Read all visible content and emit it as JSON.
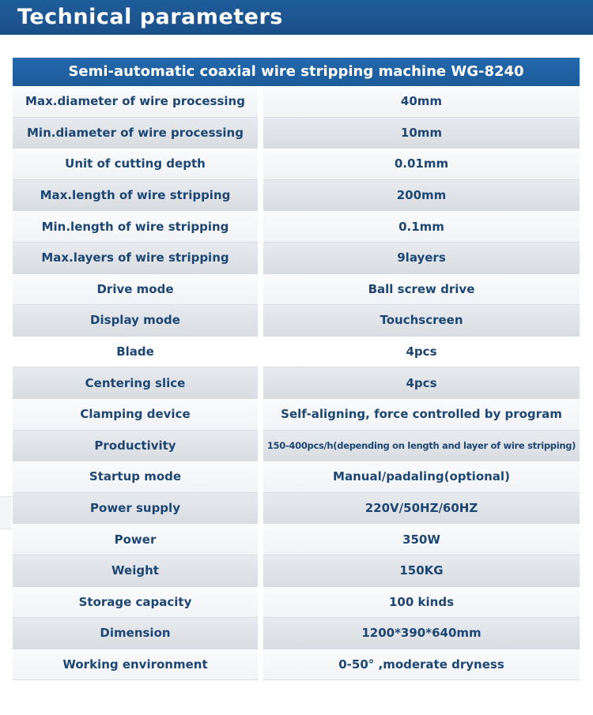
{
  "header": {
    "title": "Technical parameters"
  },
  "table": {
    "title": "Semi-automatic coaxial wire stripping machine WG-8240",
    "rows": [
      {
        "label": "Max.diameter of wire processing",
        "value": "40mm"
      },
      {
        "label": "Min.diameter of wire processing",
        "value": "10mm"
      },
      {
        "label": "Unit of cutting depth",
        "value": "0.01mm"
      },
      {
        "label": "Max.length of wire stripping",
        "value": "200mm"
      },
      {
        "label": "Min.length of wire stripping",
        "value": "0.1mm"
      },
      {
        "label": "Max.layers of wire stripping",
        "value": "9layers"
      },
      {
        "label": "Drive mode",
        "value": "Ball screw drive"
      },
      {
        "label": "Display mode",
        "value": "Touchscreen"
      },
      {
        "label": "Blade",
        "value": "4pcs"
      },
      {
        "label": "Centering slice",
        "value": "4pcs"
      },
      {
        "label": "Clamping device",
        "value": "Self-aligning, force controlled by program"
      },
      {
        "label": "Productivity",
        "value": "150-400pcs/h(depending on length and layer of wire stripping)"
      },
      {
        "label": "Startup mode",
        "value": "Manual/padaling(optional)"
      },
      {
        "label": "Power supply",
        "value": "220V/50HZ/60HZ"
      },
      {
        "label": "Power",
        "value": "350W"
      },
      {
        "label": "Weight",
        "value": "150KG"
      },
      {
        "label": "Storage capacity",
        "value": "100 kinds"
      },
      {
        "label": "Dimension",
        "value": "1200*390*640mm"
      },
      {
        "label": "Working environment",
        "value": "0-50°  ,moderate dryness"
      }
    ]
  },
  "colors": {
    "header_bg": "#1f5c9b",
    "table_title_bg": "#2369ad",
    "text": "#1d4673"
  }
}
